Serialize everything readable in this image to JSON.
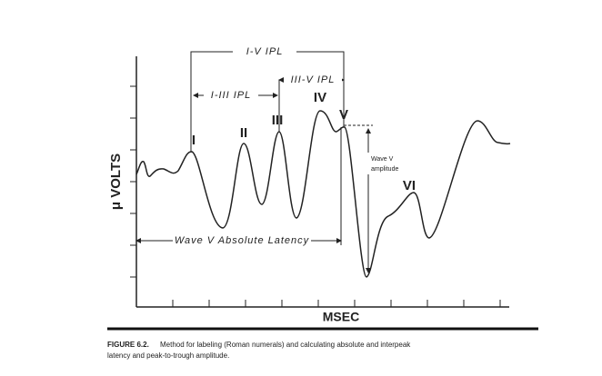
{
  "figure": {
    "brackets": {
      "i_v": "I-V IPL",
      "iii_v": "III-V IPL",
      "i_iii": "I-III IPL",
      "amplitude": [
        "Wave V",
        "amplitude"
      ],
      "latency": "Wave V Absolute Latency"
    },
    "peaks": [
      "I",
      "II",
      "III",
      "IV",
      "V",
      "VI"
    ],
    "y_label": "μ VOLTS",
    "x_label": "MSEC",
    "caption": {
      "number": "FIGURE 6.2.",
      "text_line1": "Method for labeling (Roman numerals) and calculating absolute and interpeak",
      "text_line2": "latency and peak-to-trough amplitude."
    }
  }
}
